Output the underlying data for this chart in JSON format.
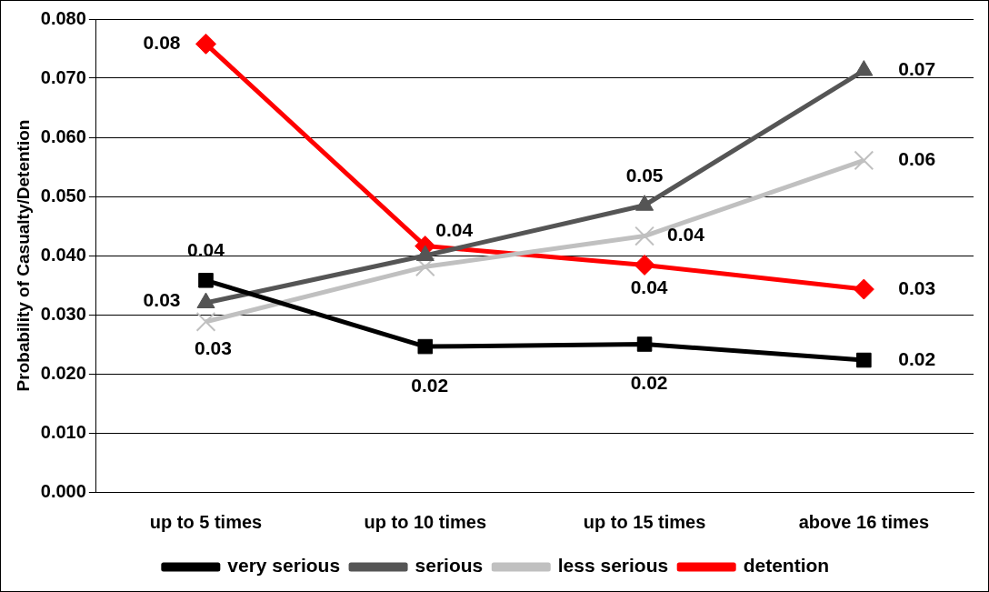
{
  "chart_data": {
    "type": "line",
    "ylabel": "Probability of Casualty/Detention",
    "categories": [
      "up to 5 times",
      "up to 10 times",
      "up to 15 times",
      "above 16 times"
    ],
    "ylim": [
      0,
      0.08
    ],
    "yticks": [
      {
        "value": 0,
        "label": "0.000"
      },
      {
        "value": 0.01,
        "label": "0.010"
      },
      {
        "value": 0.02,
        "label": "0.020"
      },
      {
        "value": 0.03,
        "label": "0.030"
      },
      {
        "value": 0.04,
        "label": "0.040"
      },
      {
        "value": 0.05,
        "label": "0.050"
      },
      {
        "value": 0.06,
        "label": "0.060"
      },
      {
        "value": 0.07,
        "label": "0.070"
      },
      {
        "value": 0.08,
        "label": "0.080"
      }
    ],
    "grid": "y",
    "legend": "bottom",
    "line_style": "solid",
    "series": [
      {
        "name": "very serious",
        "color": "#000000",
        "marker": "square",
        "values": [
          0.0358,
          0.0246,
          0.025,
          0.0223
        ],
        "value_labels": [
          "0.04",
          "0.02",
          "0.02",
          "0.02"
        ]
      },
      {
        "name": "serious",
        "color": "#555555",
        "marker": "triangle",
        "values": [
          0.032,
          0.04,
          0.0485,
          0.0713
        ],
        "value_labels": [
          "0.03",
          null,
          "0.05",
          "0.07"
        ]
      },
      {
        "name": "less serious",
        "color": "#c0c0c0",
        "marker": "cross",
        "values": [
          0.0288,
          0.0381,
          0.0433,
          0.0561
        ],
        "value_labels": [
          "0.03",
          null,
          "0.04",
          "0.06"
        ]
      },
      {
        "name": "detention",
        "color": "#ff0000",
        "marker": "diamond",
        "values": [
          0.0758,
          0.0416,
          0.0384,
          0.0343
        ],
        "value_labels": [
          "0.08",
          "0.04",
          "0.04",
          "0.03"
        ]
      }
    ]
  }
}
